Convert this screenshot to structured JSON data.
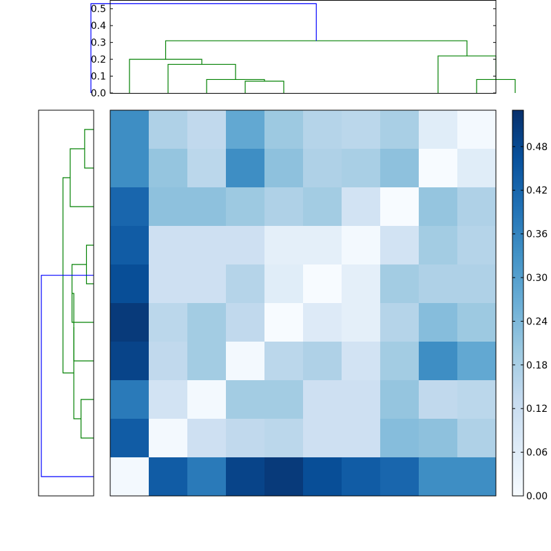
{
  "chart_data": [
    {
      "type": "heatmap",
      "title": "",
      "xlabel": "",
      "ylabel": "",
      "colormap": "Blues",
      "rows": 10,
      "cols": 10,
      "values": [
        [
          0.34,
          0.17,
          0.14,
          0.28,
          0.2,
          0.16,
          0.15,
          0.18,
          0.06,
          0.01
        ],
        [
          0.34,
          0.21,
          0.15,
          0.34,
          0.22,
          0.17,
          0.18,
          0.22,
          0.0,
          0.06
        ],
        [
          0.42,
          0.22,
          0.22,
          0.2,
          0.17,
          0.19,
          0.1,
          0.0,
          0.21,
          0.17
        ],
        [
          0.44,
          0.11,
          0.11,
          0.11,
          0.05,
          0.05,
          0.01,
          0.1,
          0.19,
          0.16
        ],
        [
          0.47,
          0.11,
          0.11,
          0.16,
          0.06,
          0.0,
          0.05,
          0.19,
          0.17,
          0.17
        ],
        [
          0.51,
          0.15,
          0.19,
          0.14,
          0.0,
          0.07,
          0.05,
          0.16,
          0.23,
          0.2
        ],
        [
          0.49,
          0.14,
          0.19,
          0.01,
          0.15,
          0.17,
          0.1,
          0.19,
          0.34,
          0.28
        ],
        [
          0.38,
          0.1,
          0.01,
          0.19,
          0.19,
          0.11,
          0.11,
          0.21,
          0.14,
          0.15
        ],
        [
          0.44,
          0.01,
          0.11,
          0.14,
          0.15,
          0.11,
          0.11,
          0.23,
          0.22,
          0.17
        ],
        [
          0.01,
          0.44,
          0.38,
          0.49,
          0.51,
          0.47,
          0.44,
          0.42,
          0.34,
          0.34
        ]
      ],
      "colorbar": {
        "min": 0.0,
        "max": 0.53,
        "ticks": [
          0.0,
          0.06,
          0.12,
          0.18,
          0.24,
          0.3,
          0.36,
          0.42,
          0.48
        ],
        "tick_labels": [
          "0.00",
          "0.06",
          "0.12",
          "0.18",
          "0.24",
          "0.30",
          "0.36",
          "0.42",
          "0.48"
        ]
      }
    },
    {
      "type": "dendrogram",
      "orientation": "top",
      "ylim": [
        0,
        0.55
      ],
      "ticks": [
        0.0,
        0.1,
        0.2,
        0.3,
        0.4,
        0.5
      ],
      "tick_labels": [
        "0.0",
        "0.1",
        "0.2",
        "0.3",
        "0.4",
        "0.5"
      ],
      "leaf_count": 10,
      "colors": {
        "above_threshold": "#0000ff",
        "cluster": "#008000"
      },
      "links": [
        {
          "a": 3,
          "b": 4,
          "h": 0.07,
          "cluster": true
        },
        {
          "a": 2,
          "b": 3.5,
          "h": 0.08,
          "cluster": true
        },
        {
          "a": 1,
          "b": 2.75,
          "h": 0.17,
          "cluster": true
        },
        {
          "a": 9,
          "b": 10,
          "h": 0.08,
          "cluster": true
        },
        {
          "a": 8,
          "b": 9.5,
          "h": 0.22,
          "cluster": true
        },
        {
          "a": 0,
          "b": 1.875,
          "h": 0.2,
          "cluster": true
        },
        {
          "a": 0.9375,
          "b": 8.75,
          "h": 0.31,
          "cluster": true
        },
        {
          "a": -1,
          "b": 4.84375,
          "h": 0.53,
          "cluster": false
        }
      ]
    },
    {
      "type": "dendrogram",
      "orientation": "left",
      "leaf_count": 10,
      "colors": {
        "above_threshold": "#0000ff",
        "cluster": "#008000"
      },
      "links": [
        {
          "a": 0,
          "b": 1,
          "h": 0.05,
          "cluster": true
        },
        {
          "a": 0.5,
          "b": 2,
          "h": 0.13,
          "cluster": true
        },
        {
          "a": 3,
          "b": 4,
          "h": 0.04,
          "cluster": true
        },
        {
          "a": 3.5,
          "b": 5,
          "h": 0.12,
          "cluster": true
        },
        {
          "a": 4.25,
          "b": 6,
          "h": 0.11,
          "cluster": true
        },
        {
          "a": 7,
          "b": 8,
          "h": 0.07,
          "cluster": true
        },
        {
          "a": 5.125,
          "b": 7.5,
          "h": 0.11,
          "cluster": true
        },
        {
          "a": 1.25,
          "b": 6.3125,
          "h": 0.17,
          "cluster": true
        },
        {
          "a": 3.78,
          "b": 9,
          "h": 0.29,
          "cluster": false
        }
      ],
      "xlim": [
        0,
        0.29
      ]
    }
  ]
}
